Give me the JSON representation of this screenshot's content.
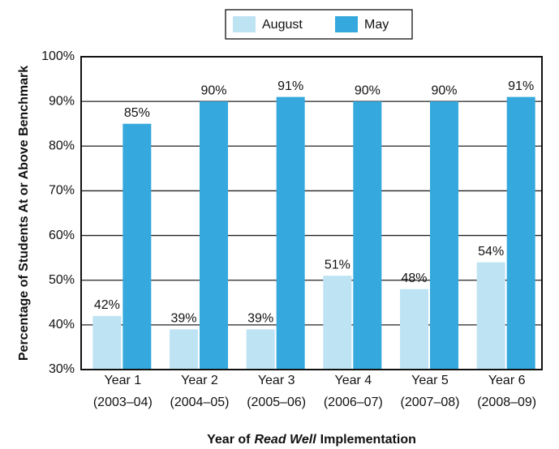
{
  "chart_data": {
    "type": "bar",
    "y_label": "Percentage of Students At or Above Benchmark",
    "x_label": [
      "Year of",
      "Read Well",
      "Implementation"
    ],
    "categories": [
      [
        "Year 1",
        "(2003–04)"
      ],
      [
        "Year 2",
        "(2004–05)"
      ],
      [
        "Year 3",
        "(2005–06)"
      ],
      [
        "Year 4",
        "(2006–07)"
      ],
      [
        "Year 5",
        "(2007–08)"
      ],
      [
        "Year 6",
        "(2008–09)"
      ]
    ],
    "series": [
      {
        "name": "August",
        "color": "#bee4f4",
        "values": [
          42,
          39,
          39,
          51,
          48,
          54
        ],
        "value_labels": [
          "42%",
          "39%",
          "39%",
          "51%",
          "48%",
          "54%"
        ]
      },
      {
        "name": "May",
        "color": "#35a9dd",
        "values": [
          85,
          90,
          91,
          90,
          90,
          91
        ],
        "value_labels": [
          "85%",
          "90%",
          "91%",
          "90%",
          "90%",
          "91%"
        ]
      }
    ],
    "ylim": [
      30,
      100
    ],
    "yticks": [
      {
        "value": 30,
        "label": "30%"
      },
      {
        "value": 40,
        "label": "40%"
      },
      {
        "value": 50,
        "label": "50%"
      },
      {
        "value": 60,
        "label": "60%"
      },
      {
        "value": 70,
        "label": "70%"
      },
      {
        "value": 80,
        "label": "80%"
      },
      {
        "value": 90,
        "label": "90%"
      },
      {
        "value": 100,
        "label": "100%"
      }
    ],
    "grid": true,
    "legend": "top"
  }
}
